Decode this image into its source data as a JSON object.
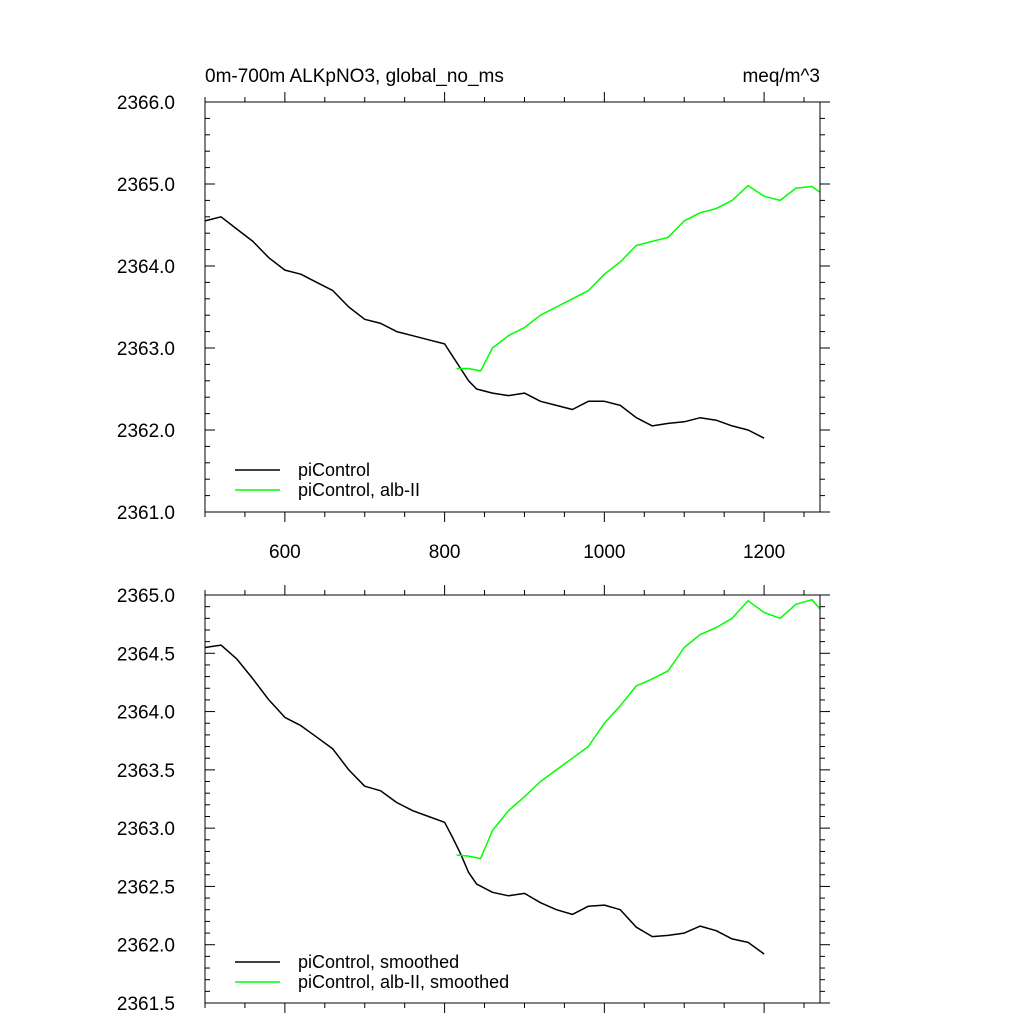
{
  "chart_data": [
    {
      "type": "line",
      "title": "0m-700m ALKpNO3, global_no_ms",
      "units": "meq/m^3",
      "xlabel": "",
      "ylabel": "",
      "xlim": [
        500,
        1270
      ],
      "ylim": [
        2361.0,
        2366.0
      ],
      "x_ticks": [
        600,
        800,
        1000,
        1200
      ],
      "x_tick_labels": [
        "600",
        "800",
        "1000",
        "1200"
      ],
      "y_ticks": [
        2361.0,
        2362.0,
        2363.0,
        2364.0,
        2365.0,
        2366.0
      ],
      "y_tick_labels": [
        "2361.0",
        "2362.0",
        "2363.0",
        "2364.0",
        "2365.0",
        "2366.0"
      ],
      "grid": false,
      "legend": "bottom-left",
      "series": [
        {
          "name": "piControl",
          "color": "#000000",
          "x": [
            500,
            520,
            540,
            560,
            580,
            600,
            620,
            640,
            660,
            680,
            700,
            720,
            740,
            760,
            780,
            800,
            810,
            820,
            830,
            840,
            860,
            880,
            900,
            920,
            940,
            960,
            980,
            1000,
            1020,
            1040,
            1060,
            1080,
            1100,
            1120,
            1140,
            1160,
            1180,
            1200
          ],
          "y": [
            2364.55,
            2364.6,
            2364.45,
            2364.3,
            2364.1,
            2363.95,
            2363.9,
            2363.8,
            2363.7,
            2363.5,
            2363.35,
            2363.3,
            2363.2,
            2363.15,
            2363.1,
            2363.05,
            2362.9,
            2362.75,
            2362.6,
            2362.5,
            2362.45,
            2362.42,
            2362.45,
            2362.35,
            2362.3,
            2362.25,
            2362.35,
            2362.35,
            2362.3,
            2362.15,
            2362.05,
            2362.08,
            2362.1,
            2362.15,
            2362.12,
            2362.05,
            2362.0,
            2361.9
          ]
        },
        {
          "name": "piControl, alb-II",
          "color": "#00ff00",
          "x": [
            815,
            830,
            845,
            860,
            880,
            900,
            920,
            940,
            960,
            980,
            1000,
            1020,
            1040,
            1060,
            1080,
            1100,
            1120,
            1140,
            1160,
            1180,
            1200,
            1220,
            1240,
            1260,
            1270
          ],
          "y": [
            2362.75,
            2362.75,
            2362.72,
            2363.0,
            2363.15,
            2363.25,
            2363.4,
            2363.5,
            2363.6,
            2363.7,
            2363.9,
            2364.05,
            2364.25,
            2364.3,
            2364.35,
            2364.55,
            2364.65,
            2364.7,
            2364.8,
            2364.98,
            2364.85,
            2364.8,
            2364.95,
            2364.97,
            2364.9
          ]
        }
      ]
    },
    {
      "type": "line",
      "title": "",
      "xlabel": "",
      "ylabel": "",
      "xlim": [
        500,
        1270
      ],
      "ylim": [
        2361.5,
        2365.0
      ],
      "x_ticks": [
        600,
        800,
        1000,
        1200
      ],
      "x_tick_labels": [],
      "y_ticks": [
        2361.5,
        2362.0,
        2362.5,
        2363.0,
        2363.5,
        2364.0,
        2364.5,
        2365.0
      ],
      "y_tick_labels": [
        "2361.5",
        "2362.0",
        "2362.5",
        "2363.0",
        "2363.5",
        "2364.0",
        "2364.5",
        "2365.0"
      ],
      "grid": false,
      "legend": "bottom-left",
      "series": [
        {
          "name": "piControl, smoothed",
          "color": "#000000",
          "x": [
            500,
            520,
            540,
            560,
            580,
            600,
            620,
            640,
            660,
            680,
            700,
            720,
            740,
            760,
            780,
            800,
            810,
            820,
            830,
            840,
            860,
            880,
            900,
            920,
            940,
            960,
            980,
            1000,
            1020,
            1040,
            1060,
            1080,
            1100,
            1120,
            1140,
            1160,
            1180,
            1200
          ],
          "y": [
            2364.55,
            2364.57,
            2364.45,
            2364.28,
            2364.1,
            2363.95,
            2363.88,
            2363.78,
            2363.68,
            2363.5,
            2363.36,
            2363.32,
            2363.22,
            2363.15,
            2363.1,
            2363.05,
            2362.92,
            2362.78,
            2362.62,
            2362.52,
            2362.45,
            2362.42,
            2362.44,
            2362.36,
            2362.3,
            2362.26,
            2362.33,
            2362.34,
            2362.3,
            2362.15,
            2362.07,
            2362.08,
            2362.1,
            2362.16,
            2362.12,
            2362.05,
            2362.02,
            2361.92
          ]
        },
        {
          "name": "piControl, alb-II, smoothed",
          "color": "#00ff00",
          "x": [
            815,
            830,
            845,
            860,
            880,
            900,
            920,
            940,
            960,
            980,
            1000,
            1020,
            1040,
            1060,
            1080,
            1100,
            1120,
            1140,
            1160,
            1180,
            1200,
            1220,
            1240,
            1260,
            1270
          ],
          "y": [
            2362.77,
            2362.76,
            2362.74,
            2362.98,
            2363.15,
            2363.27,
            2363.4,
            2363.5,
            2363.6,
            2363.7,
            2363.9,
            2364.05,
            2364.22,
            2364.28,
            2364.35,
            2364.55,
            2364.66,
            2364.72,
            2364.8,
            2364.95,
            2364.85,
            2364.8,
            2364.92,
            2364.96,
            2364.88
          ]
        }
      ]
    }
  ]
}
